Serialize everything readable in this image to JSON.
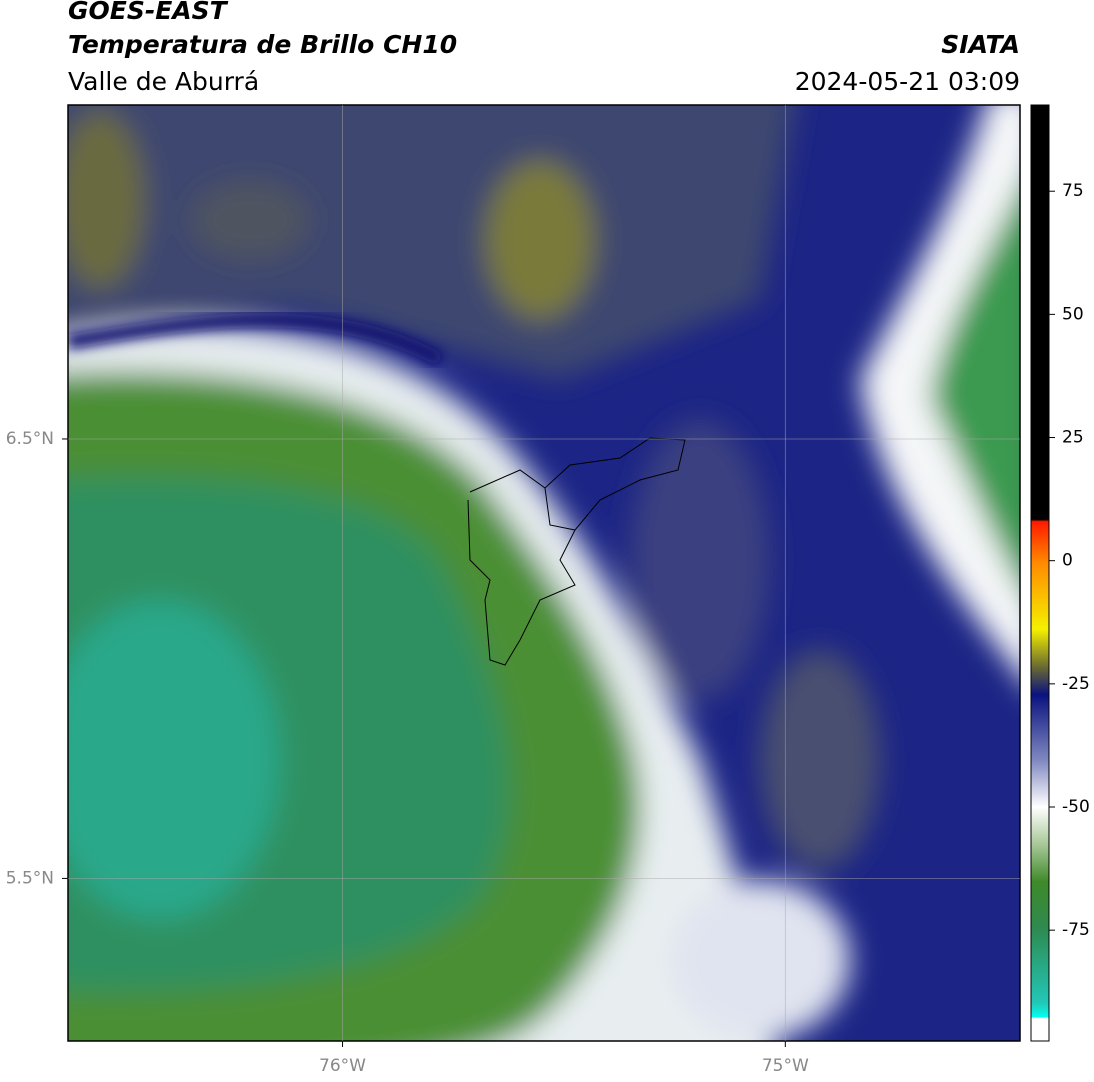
{
  "header": {
    "title": "GOES-EAST",
    "subtitle": "Temperatura de Brillo CH10",
    "region": "Valle de Aburrá",
    "source": "SIATA",
    "datetime": "2024-05-21 03:09"
  },
  "map": {
    "xlim": [
      -76.62,
      -74.47
    ],
    "ylim": [
      5.13,
      7.26
    ],
    "xticks": [
      {
        "value": -76,
        "label": "76°W"
      },
      {
        "value": -75,
        "label": "75°W"
      }
    ],
    "yticks": [
      {
        "value": 6.5,
        "label": "6.5°N"
      },
      {
        "value": 5.5,
        "label": "5.5°N"
      }
    ],
    "grid": true
  },
  "colorbar": {
    "lim": [
      -97.5,
      92.5
    ],
    "ticks": [
      75,
      50,
      25,
      0,
      -25,
      -50,
      -75
    ]
  }
}
